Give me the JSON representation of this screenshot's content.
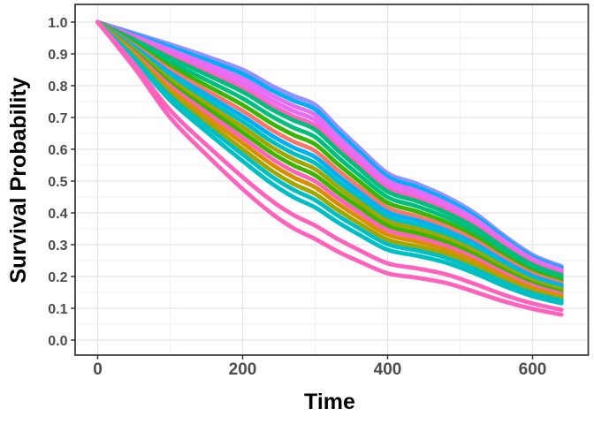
{
  "chart_data": {
    "type": "line",
    "title": "",
    "xlabel": "Time",
    "ylabel": "Survival Probability",
    "legend": "none",
    "grid": {
      "major": true,
      "minor": true
    },
    "xlim": [
      -30,
      678
    ],
    "ylim": [
      0.0,
      1.0
    ],
    "x_tick_labels": [
      "0",
      "200",
      "400",
      "600"
    ],
    "x_tick_values": [
      0,
      200,
      400,
      600
    ],
    "x_minor_tick_values": [
      100,
      300,
      500
    ],
    "y_tick_labels": [
      "1.0",
      "0.9",
      "0.8",
      "0.7",
      "0.6",
      "0.5",
      "0.4",
      "0.3",
      "0.2",
      "0.1",
      "0.0"
    ],
    "y_tick_values": [
      1.0,
      0.9,
      0.8,
      0.7,
      0.6,
      0.5,
      0.4,
      0.3,
      0.2,
      0.1,
      0.0
    ],
    "x_samples": [
      0,
      50,
      100,
      150,
      200,
      240,
      270,
      300,
      330,
      360,
      400,
      440,
      480,
      520,
      560,
      600,
      640
    ],
    "envelope_top": [
      1.0,
      0.965,
      0.93,
      0.892,
      0.85,
      0.8,
      0.768,
      0.74,
      0.672,
      0.607,
      0.525,
      0.492,
      0.452,
      0.4,
      0.33,
      0.268,
      0.232
    ],
    "envelope_bottom": [
      1.0,
      0.858,
      0.7,
      0.583,
      0.475,
      0.398,
      0.352,
      0.318,
      0.28,
      0.248,
      0.21,
      0.196,
      0.18,
      0.152,
      0.122,
      0.098,
      0.08
    ],
    "series_value_rule": "survival = envelope_bottom + weight * (envelope_top - envelope_bottom), evaluated at x_samples",
    "series": [
      {
        "color": "#9590FF",
        "weight": 1.0
      },
      {
        "color": "#00B0F6",
        "weight": 0.965
      },
      {
        "color": "#E76BF3",
        "weight": 0.925
      },
      {
        "color": "#E76BF3",
        "weight": 0.885
      },
      {
        "color": "#FF62BC",
        "weight": 0.845
      },
      {
        "color": "#00BF7D",
        "weight": 0.815
      },
      {
        "color": "#00BF7D",
        "weight": 0.76
      },
      {
        "color": "#39B600",
        "weight": 0.705
      },
      {
        "color": "#F8766D",
        "weight": 0.655
      },
      {
        "color": "#00B0F6",
        "weight": 0.61
      },
      {
        "color": "#00BFC4",
        "weight": 0.565
      },
      {
        "color": "#A3A500",
        "weight": 0.52
      },
      {
        "color": "#39B600",
        "weight": 0.475
      },
      {
        "color": "#FF62BC",
        "weight": 0.43
      },
      {
        "color": "#D89000",
        "weight": 0.385
      },
      {
        "color": "#A3A500",
        "weight": 0.335
      },
      {
        "color": "#00BFC4",
        "weight": 0.29
      },
      {
        "color": "#00BFC4",
        "weight": 0.235
      },
      {
        "color": "#FF62BC",
        "weight": 0.1
      },
      {
        "color": "#FF62BC",
        "weight": 0.0
      }
    ],
    "colors": {
      "background": "#FFFFFF",
      "panel_background": "#FFFFFF",
      "panel_border": "#3C3C3C",
      "grid_major": "#E4E4E4",
      "grid_minor": "#F2F2F2",
      "tick_mark": "#333333",
      "tick_label": "#4D4D4D",
      "axis_title": "#000000",
      "palette": [
        "#F8766D",
        "#D89000",
        "#A3A500",
        "#39B600",
        "#00BF7D",
        "#00BFC4",
        "#00B0F6",
        "#9590FF",
        "#E76BF3",
        "#FF62BC"
      ]
    }
  }
}
